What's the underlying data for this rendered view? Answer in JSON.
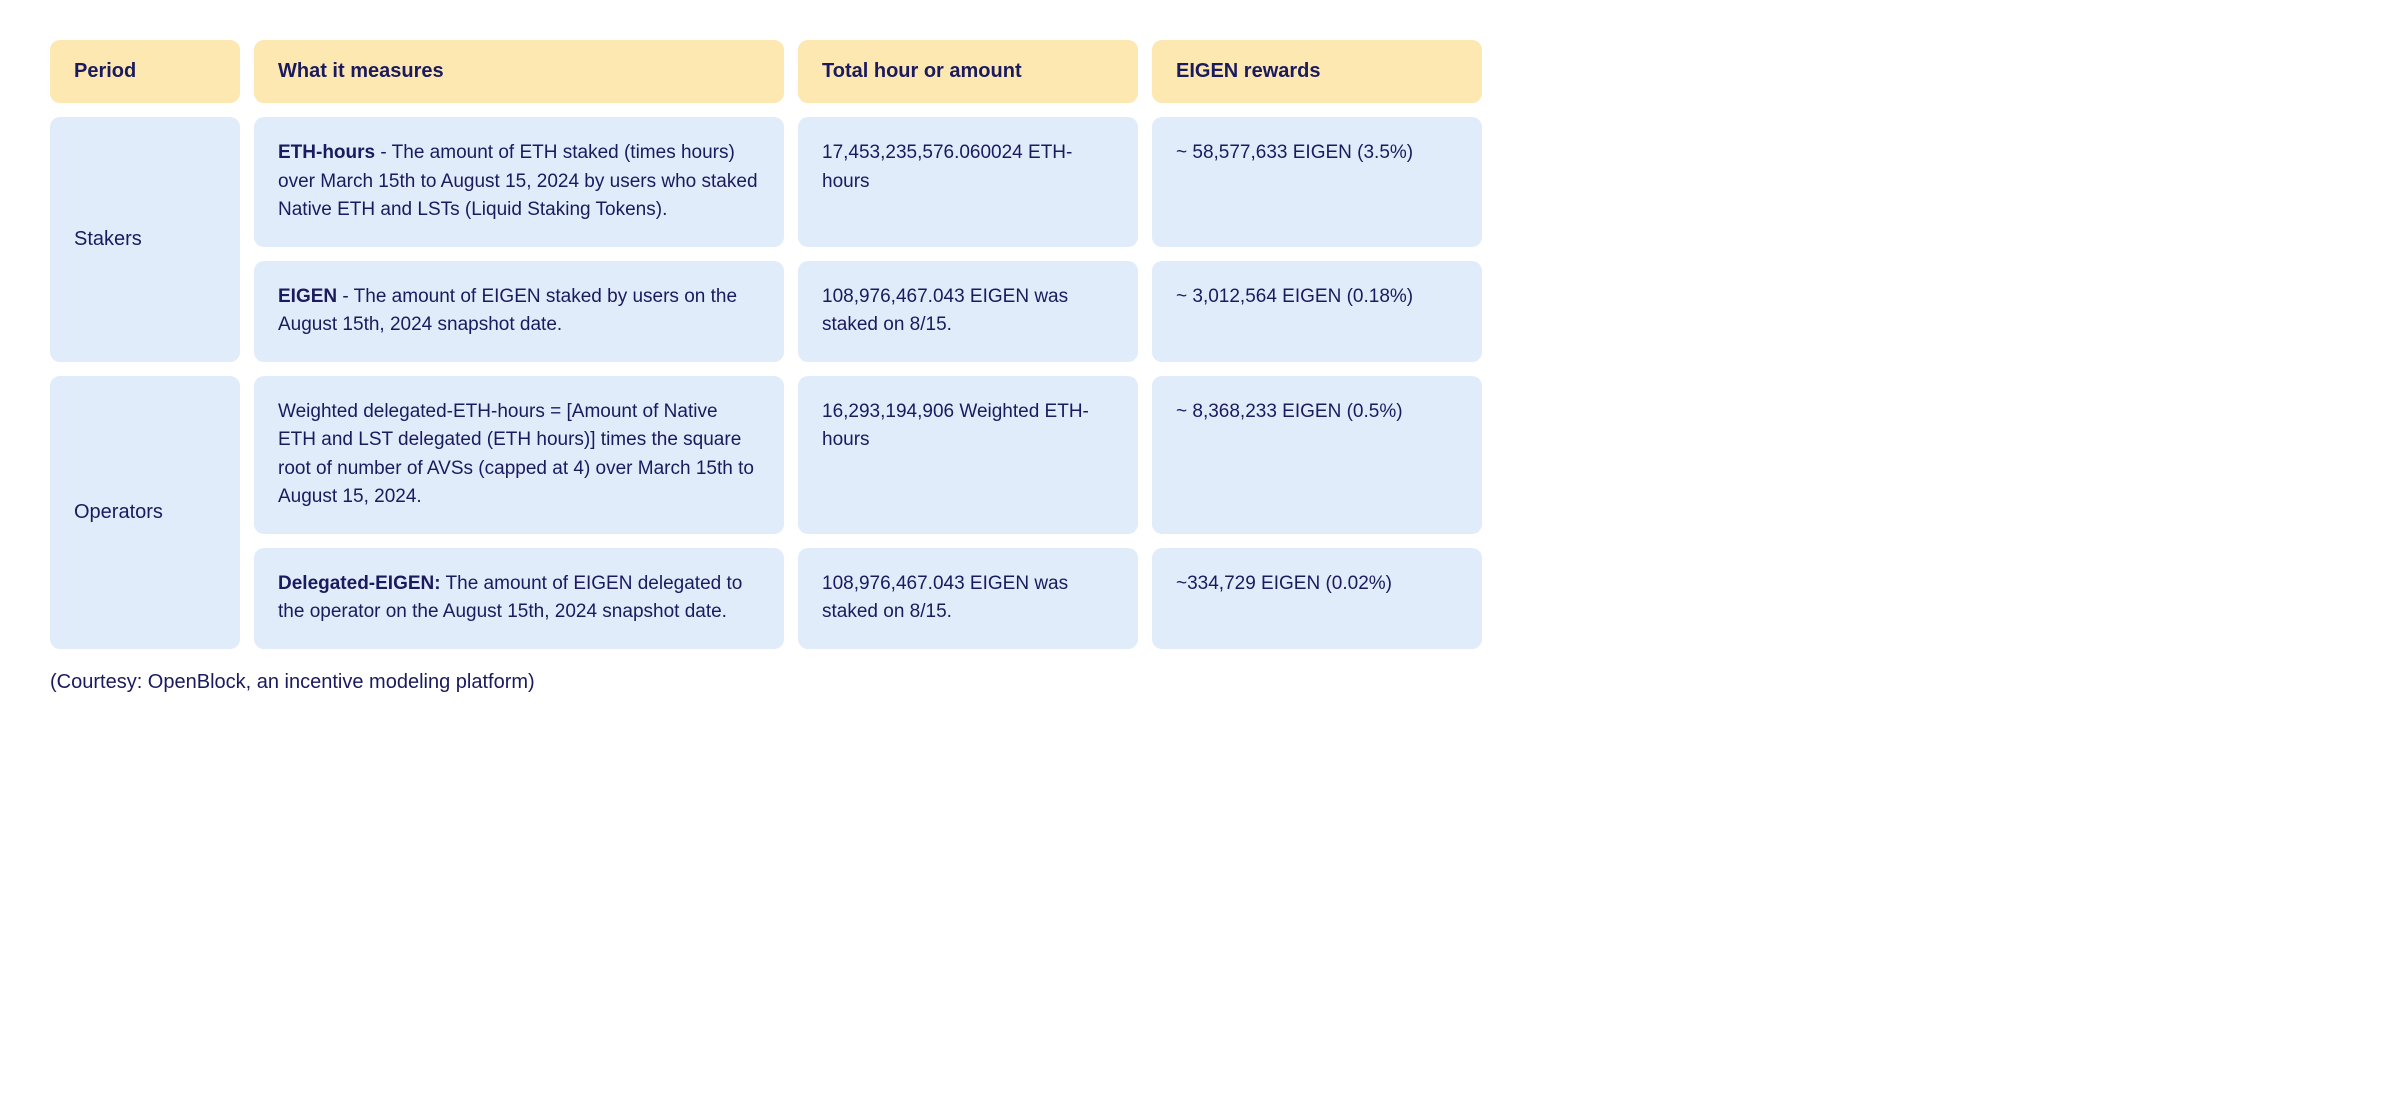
{
  "columns": {
    "period": "Period",
    "measures": "What it measures",
    "total": "Total hour or amount",
    "rewards": "EIGEN rewards"
  },
  "rows": {
    "stakers": {
      "period_label": "Stakers",
      "eth_hours": {
        "measure_bold": "ETH-hours",
        "measure_text": " -  The amount of ETH staked (times hours) over March 15th to August 15, 2024  by users who staked Native ETH and LSTs (Liquid Staking Tokens).",
        "total": "17,453,235,576.060024 ETH-hours",
        "rewards": "~ 58,577,633 EIGEN (3.5%)"
      },
      "eigen": {
        "measure_bold": "EIGEN",
        "measure_text": " - The amount of EIGEN staked by users on the August 15th, 2024 snapshot date.",
        "total": "108,976,467.043 EIGEN was staked on 8/15.",
        "rewards": "~ 3,012,564 EIGEN  (0.18%)"
      }
    },
    "operators": {
      "period_label": "Operators",
      "weighted": {
        "measure_text": "Weighted delegated-ETH-hours = [Amount of Native ETH and LST delegated (ETH hours)] times the square root of number of  AVSs (capped at 4) over March 15th to August 15, 2024.",
        "total": "16,293,194,906 Weighted ETH-hours",
        "rewards": "~ 8,368,233 EIGEN (0.5%)"
      },
      "delegated": {
        "measure_bold": "Delegated-EIGEN:",
        "measure_text": " The amount of EIGEN delegated to the operator on the August 15th, 2024 snapshot date.",
        "total": "108,976,467.043 EIGEN was staked on 8/15.",
        "rewards": "~334,729 EIGEN (0.02%)"
      }
    }
  },
  "caption": "(Courtesy: OpenBlock, an incentive modeling platform)",
  "colors": {
    "header_bg": "#fde8b2",
    "body_bg": "#e1ecfb",
    "text": "#1a1a5e",
    "page_bg": "#ffffff"
  }
}
